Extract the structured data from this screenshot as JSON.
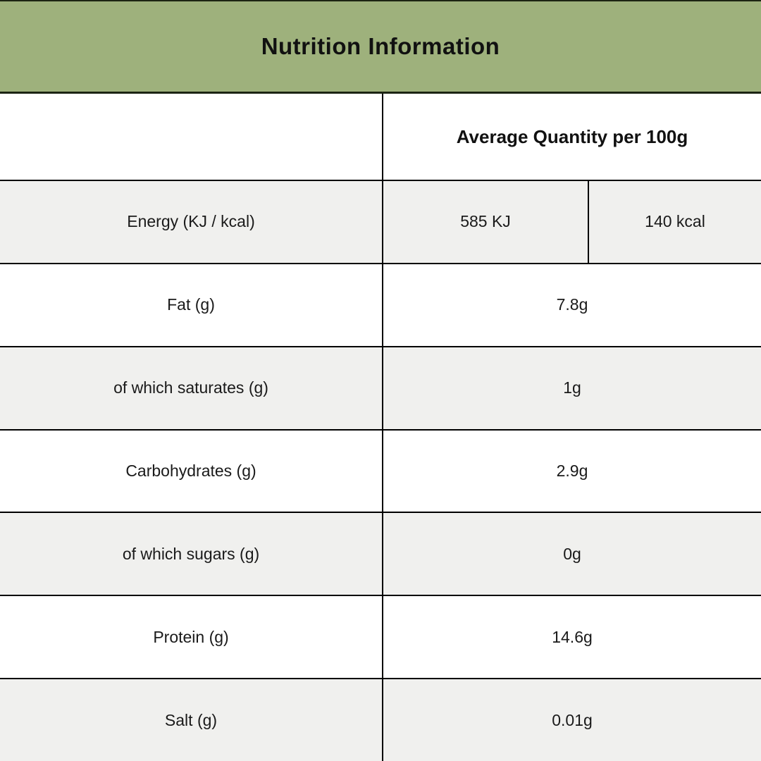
{
  "title": "Nutrition Information",
  "colors": {
    "header_bg": "#9eb17c",
    "header_border": "#1c2413",
    "row_alt_bg": "#f0f0ee",
    "row_bg": "#ffffff",
    "grid_line": "#000000",
    "text": "#1a1a1a"
  },
  "table": {
    "column_header": "Average Quantity per 100g",
    "rows": [
      {
        "label": "Energy (KJ / kcal)",
        "values": [
          "585 KJ",
          "140 kcal"
        ]
      },
      {
        "label": "Fat (g)",
        "values": [
          "7.8g"
        ]
      },
      {
        "label": "of which saturates (g)",
        "values": [
          "1g"
        ]
      },
      {
        "label": "Carbohydrates (g)",
        "values": [
          "2.9g"
        ]
      },
      {
        "label": "of which sugars (g)",
        "values": [
          "0g"
        ]
      },
      {
        "label": "Protein (g)",
        "values": [
          "14.6g"
        ]
      },
      {
        "label": "Salt (g)",
        "values": [
          "0.01g"
        ]
      }
    ]
  }
}
